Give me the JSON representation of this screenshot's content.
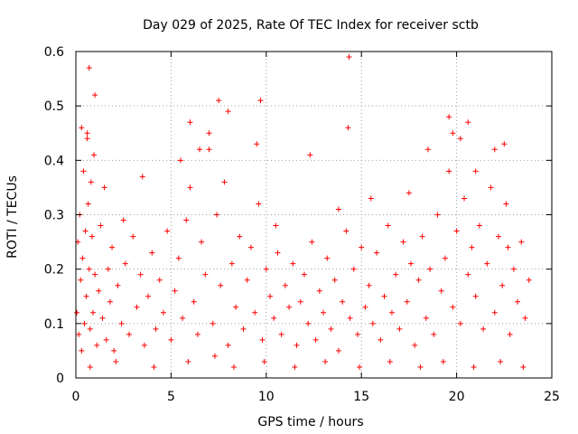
{
  "chart_data": {
    "type": "scatter",
    "title": "Day 029 of 2025, Rate Of TEC Index for receiver sctb",
    "xlabel": "GPS time / hours",
    "ylabel": "ROTI / TECUs",
    "xlim": [
      0,
      25
    ],
    "ylim": [
      0,
      0.6
    ],
    "x_ticks": [
      0,
      5,
      10,
      15,
      20,
      25
    ],
    "x_tick_labels": [
      "0",
      "5",
      "10",
      "15",
      "20",
      "25"
    ],
    "y_ticks": [
      0,
      0.1,
      0.2,
      0.3,
      0.4,
      0.5,
      0.6
    ],
    "y_tick_labels": [
      "0",
      "0.1",
      "0.2",
      "0.3",
      "0.4",
      "0.5",
      "0.6"
    ],
    "grid": true,
    "legend": "none",
    "marker": "plus",
    "color": "#ff0000",
    "series": [
      {
        "x": [
          0.05,
          0.1,
          0.15,
          0.2,
          0.25,
          0.3,
          0.35,
          0.4,
          0.45,
          0.5,
          0.55,
          0.6,
          0.65,
          0.7,
          0.75,
          0.8,
          0.85,
          0.9,
          0.95,
          1.0,
          1.1,
          1.2,
          1.3,
          1.4,
          1.5,
          1.6,
          1.7,
          1.8,
          1.9,
          2.0,
          2.2,
          2.4,
          2.6,
          2.8,
          3.0,
          3.2,
          3.4,
          3.6,
          3.8,
          4.0,
          4.2,
          4.4,
          4.6,
          4.8,
          5.0,
          5.2,
          5.4,
          5.6,
          5.8,
          6.0,
          6.2,
          6.4,
          6.6,
          6.8,
          7.0,
          7.2,
          7.4,
          7.6,
          7.8,
          8.0,
          8.2,
          8.4,
          8.6,
          8.8,
          9.0,
          9.2,
          9.4,
          9.6,
          9.8,
          10.0,
          10.2,
          10.4,
          10.6,
          10.8,
          11.0,
          11.2,
          11.4,
          11.6,
          11.8,
          12.0,
          12.2,
          12.4,
          12.6,
          12.8,
          13.0,
          13.2,
          13.4,
          13.6,
          13.8,
          14.0,
          14.2,
          14.4,
          14.6,
          14.8,
          15.0,
          15.2,
          15.4,
          15.6,
          15.8,
          16.0,
          16.2,
          16.4,
          16.6,
          16.8,
          17.0,
          17.2,
          17.4,
          17.6,
          17.8,
          18.0,
          18.2,
          18.4,
          18.6,
          18.8,
          19.0,
          19.2,
          19.4,
          19.6,
          19.8,
          20.0,
          20.2,
          20.4,
          20.6,
          20.8,
          21.0,
          21.2,
          21.4,
          21.6,
          21.8,
          22.0,
          22.2,
          22.4,
          22.6,
          22.8,
          23.0,
          23.2,
          23.4,
          23.6,
          23.8,
          0.3,
          0.7,
          1.0,
          2.5,
          3.5,
          5.5,
          6.0,
          6.5,
          7.0,
          7.5,
          8.0,
          9.5,
          9.7,
          10.5,
          12.3,
          13.8,
          14.3,
          14.35,
          15.5,
          17.5,
          18.5,
          19.6,
          19.8,
          20.2,
          20.6,
          21.0,
          22.0,
          22.5,
          22.7,
          0.6,
          0.75,
          2.1,
          4.1,
          5.9,
          7.3,
          8.3,
          9.9,
          11.5,
          13.1,
          14.9,
          16.5,
          18.1,
          19.3,
          20.9,
          22.3,
          23.5
        ],
        "y": [
          0.12,
          0.25,
          0.08,
          0.3,
          0.18,
          0.05,
          0.22,
          0.38,
          0.1,
          0.27,
          0.15,
          0.44,
          0.32,
          0.2,
          0.09,
          0.36,
          0.26,
          0.12,
          0.41,
          0.19,
          0.06,
          0.16,
          0.28,
          0.11,
          0.35,
          0.07,
          0.2,
          0.14,
          0.24,
          0.05,
          0.17,
          0.1,
          0.21,
          0.08,
          0.26,
          0.13,
          0.19,
          0.06,
          0.15,
          0.23,
          0.09,
          0.18,
          0.12,
          0.27,
          0.07,
          0.16,
          0.22,
          0.11,
          0.29,
          0.35,
          0.14,
          0.08,
          0.25,
          0.19,
          0.42,
          0.1,
          0.3,
          0.17,
          0.36,
          0.06,
          0.21,
          0.13,
          0.26,
          0.09,
          0.18,
          0.24,
          0.12,
          0.32,
          0.07,
          0.2,
          0.15,
          0.11,
          0.23,
          0.08,
          0.17,
          0.13,
          0.21,
          0.06,
          0.14,
          0.19,
          0.1,
          0.25,
          0.07,
          0.16,
          0.12,
          0.22,
          0.09,
          0.18,
          0.05,
          0.14,
          0.27,
          0.11,
          0.2,
          0.08,
          0.24,
          0.13,
          0.17,
          0.1,
          0.23,
          0.07,
          0.15,
          0.28,
          0.12,
          0.19,
          0.09,
          0.25,
          0.14,
          0.21,
          0.06,
          0.18,
          0.26,
          0.11,
          0.2,
          0.08,
          0.3,
          0.16,
          0.22,
          0.38,
          0.13,
          0.27,
          0.1,
          0.33,
          0.19,
          0.24,
          0.15,
          0.28,
          0.09,
          0.21,
          0.35,
          0.12,
          0.26,
          0.17,
          0.32,
          0.08,
          0.2,
          0.14,
          0.25,
          0.11,
          0.18,
          0.46,
          0.57,
          0.52,
          0.29,
          0.37,
          0.4,
          0.47,
          0.42,
          0.45,
          0.51,
          0.49,
          0.43,
          0.51,
          0.28,
          0.41,
          0.31,
          0.46,
          0.59,
          0.33,
          0.34,
          0.42,
          0.48,
          0.45,
          0.44,
          0.47,
          0.38,
          0.42,
          0.43,
          0.24,
          0.45,
          0.02,
          0.03,
          0.02,
          0.03,
          0.04,
          0.02,
          0.03,
          0.02,
          0.03,
          0.02,
          0.03,
          0.02,
          0.03,
          0.02,
          0.03,
          0.02
        ]
      }
    ]
  }
}
